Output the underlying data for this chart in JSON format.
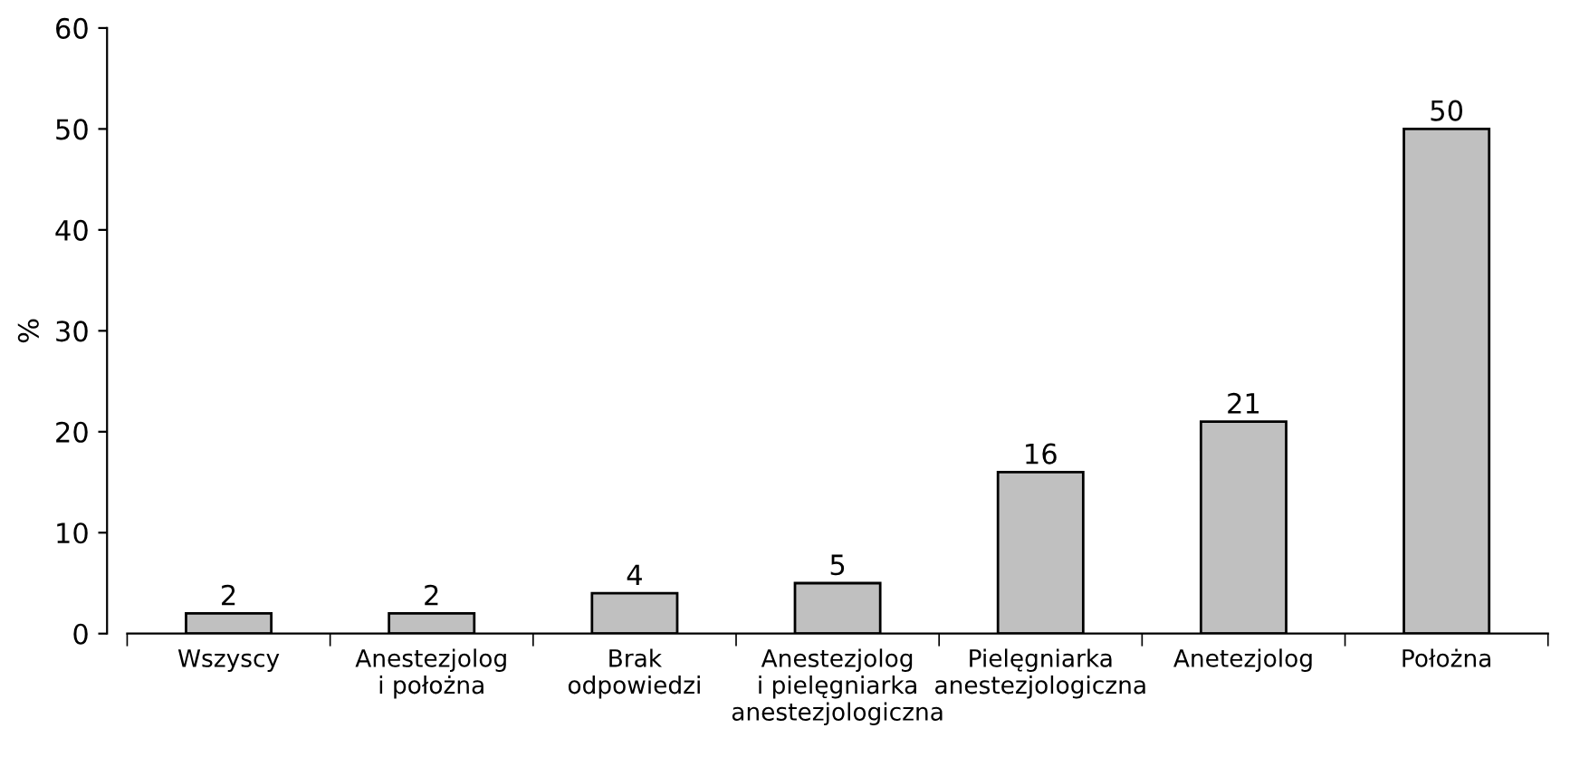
{
  "chart_data": {
    "type": "bar",
    "ylabel": "%",
    "categories": [
      "Wszyscy",
      "Anestezjolog\ni położna",
      "Brak\nodpowiedzi",
      "Anestezjolog\ni pielęgniarka\nanestezjologiczna",
      "Pielęgniarka\nanestezjologiczna",
      "Anetezjolog",
      "Położna"
    ],
    "values": [
      2,
      2,
      4,
      5,
      16,
      21,
      50
    ],
    "color": "#c0c0c0",
    "ylim": [
      0,
      60
    ],
    "yticks": [
      0,
      10,
      20,
      30,
      40,
      50,
      60
    ],
    "grid": false,
    "data_labels": true
  }
}
